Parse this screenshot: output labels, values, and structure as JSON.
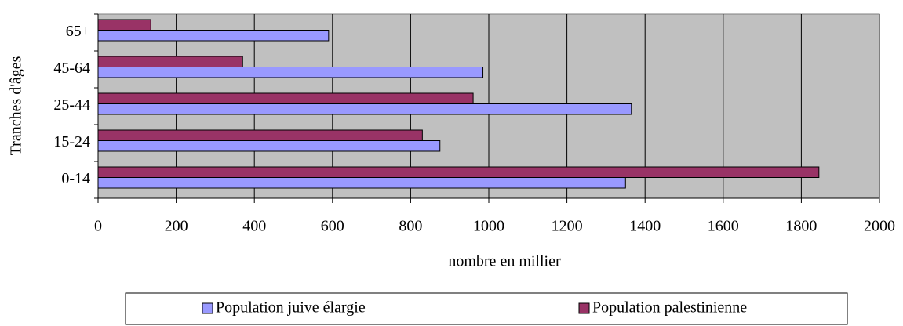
{
  "chart_data": {
    "type": "bar",
    "orientation": "horizontal",
    "categories": [
      "0-14",
      "15-24",
      "25-44",
      "45-64",
      "65+"
    ],
    "series": [
      {
        "name": "Population juive élargie",
        "color": "#9999ff",
        "values": [
          1350,
          875,
          1365,
          985,
          590
        ]
      },
      {
        "name": "Population palestinienne",
        "color": "#993366",
        "values": [
          1845,
          830,
          960,
          370,
          135
        ]
      }
    ],
    "xlabel": "nombre en millier",
    "ylabel": "Tranches d'âges",
    "xlim": [
      0,
      2000
    ],
    "xticks": [
      0,
      200,
      400,
      600,
      800,
      1000,
      1200,
      1400,
      1600,
      1800,
      2000
    ],
    "grid": true,
    "legend": "bottom",
    "plot_background": "#c0c0c0"
  }
}
